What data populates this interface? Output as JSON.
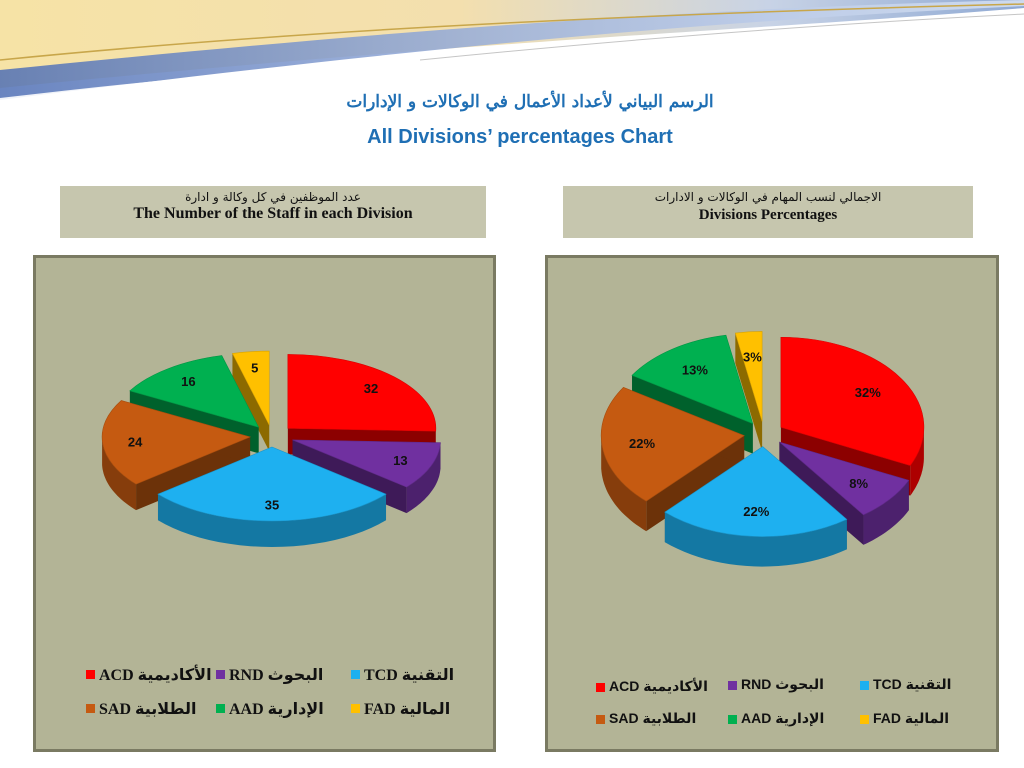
{
  "header": {
    "title_ar": "الرسم البياني لأعداد الأعمال في الوكالات و الإدارات",
    "title_en": "All Divisions’ percentages Chart"
  },
  "captions": {
    "left": {
      "ar": "عدد الموظفين في كل وكالة و ادارة",
      "en": "The Number of the Staff in each Division"
    },
    "right": {
      "ar": "الاجمالي لنسب المهام في الوكالات و الادارات",
      "en": "Divisions Percentages"
    }
  },
  "colors": {
    "ACD": "#ff0000",
    "RND": "#7030a0",
    "TCD": "#1eb0f0",
    "SAD": "#c55a11",
    "AAD": "#00b050",
    "FAD": "#ffc000",
    "panel_bg": "#b3b496",
    "caption_bg": "#c6c6ae",
    "title": "#1f6fb4"
  },
  "chart_data": [
    {
      "type": "pie",
      "title": "",
      "legend": "bottom",
      "categories": [
        "ACD",
        "RND",
        "TCD",
        "SAD",
        "AAD",
        "FAD"
      ],
      "values": [
        32,
        13,
        35,
        24,
        16,
        5
      ],
      "data_labels": [
        "32",
        "13",
        "35",
        "24",
        "16",
        "5"
      ],
      "legend_entries": [
        {
          "code": "ACD",
          "ar": "الأكاديمية"
        },
        {
          "code": "RND",
          "ar": "البحوث"
        },
        {
          "code": "TCD",
          "ar": "التقنية"
        },
        {
          "code": "SAD",
          "ar": "الطلابية"
        },
        {
          "code": "AAD",
          "ar": "الإدارية"
        },
        {
          "code": "FAD",
          "ar": "المالية"
        }
      ]
    },
    {
      "type": "pie",
      "title": "",
      "legend": "bottom",
      "categories": [
        "ACD",
        "RND",
        "TCD",
        "SAD",
        "AAD",
        "FAD"
      ],
      "values": [
        32,
        8,
        22,
        22,
        13,
        3
      ],
      "data_labels": [
        "32%",
        "8%",
        "22%",
        "22%",
        "13%",
        "3%"
      ],
      "legend_entries": [
        {
          "code": "ACD",
          "ar": "الأكاديمية"
        },
        {
          "code": "RND",
          "ar": "البحوث"
        },
        {
          "code": "TCD",
          "ar": "التقنية"
        },
        {
          "code": "SAD",
          "ar": "الطلابية"
        },
        {
          "code": "AAD",
          "ar": "الإدارية"
        },
        {
          "code": "FAD",
          "ar": "المالية"
        }
      ]
    }
  ]
}
